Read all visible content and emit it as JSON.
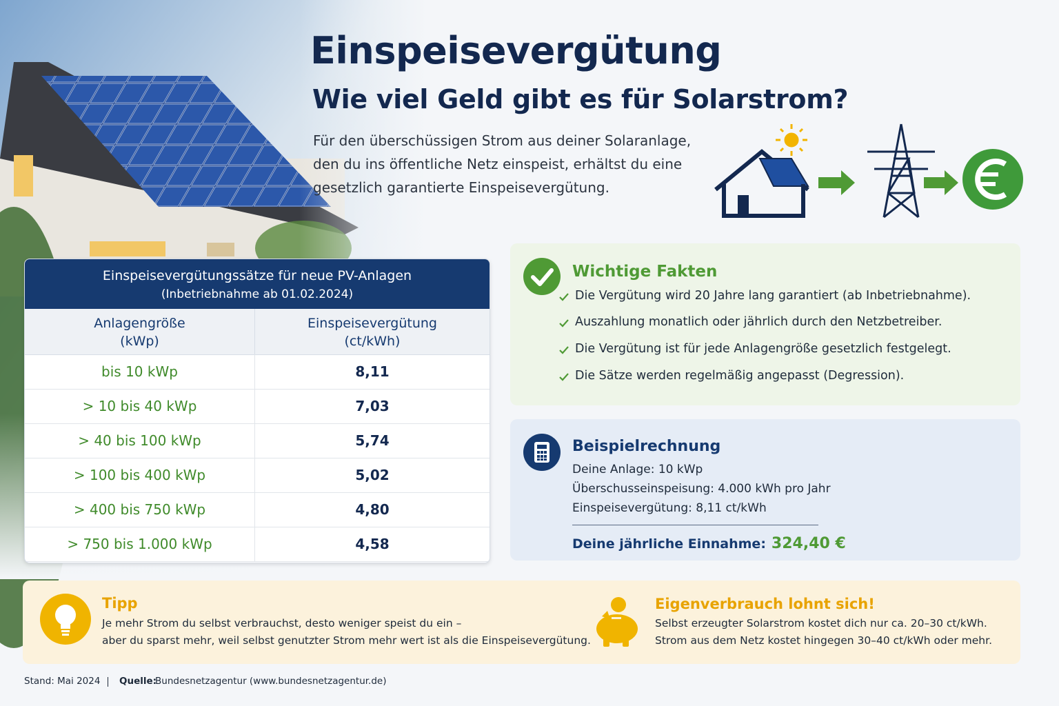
{
  "header": {
    "title": "Einspeisevergütung",
    "subtitle": "Wie viel Geld gibt es für Solarstrom?",
    "intro": [
      "Für den überschüssigen Strom aus deiner Solaranlage,",
      "den du ins öffentliche Netz einspeist, erhältst du eine",
      "gesetzlich garantierte Einspeisevergütung."
    ]
  },
  "table": {
    "title": "Einspeisevergütungssätze für neue PV-Anlagen",
    "subtitle": "(Inbetriebnahme ab 01.02.2024)",
    "columns": [
      [
        "Anlagengröße",
        "(kWp)"
      ],
      [
        "Einspeisevergütung",
        "(ct/kWh)"
      ]
    ],
    "rows": [
      [
        "bis 10 kWp",
        "8,11"
      ],
      [
        "> 10 bis 40 kWp",
        "7,03"
      ],
      [
        "> 40 bis 100 kWp",
        "5,74"
      ],
      [
        "> 100 bis 400 kWp",
        "5,02"
      ],
      [
        "> 400 bis 750 kWp",
        "4,80"
      ],
      [
        "> 750 bis 1.000 kWp",
        "4,58"
      ]
    ]
  },
  "facts": {
    "title": "Wichtige Fakten",
    "items": [
      "Die Vergütung wird 20 Jahre lang garantiert (ab Inbetriebnahme).",
      "Auszahlung monatlich oder jährlich durch den Netzbetreiber.",
      "Die Vergütung ist für jede Anlagengröße gesetzlich festgelegt.",
      "Die Sätze werden regelmäßig angepasst (Degression)."
    ]
  },
  "example": {
    "title": "Beispielrechnung",
    "lines": [
      "Deine Anlage: 10 kWp",
      "Überschusseinspeisung: 4.000 kWh pro Jahr",
      "Einspeisevergütung: 8,11 ct/kWh"
    ],
    "result_label": "Deine jährliche Einnahme:",
    "result_value": "324,40 €"
  },
  "tip": {
    "title": "Tipp",
    "lines": [
      "Je mehr Strom du selbst verbrauchst, desto weniger speist du ein –",
      "aber du sparst mehr, weil selbst genutzter Strom mehr wert ist als die Einspeisevergütung."
    ]
  },
  "own_use": {
    "title": "Eigenverbrauch lohnt sich!",
    "lines": [
      "Selbst erzeugter Solarstrom kostet dich nur ca. 20–30 ct/kWh.",
      "Strom aus dem Netz kostet hingegen 30–40 ct/kWh oder mehr."
    ]
  },
  "footer": {
    "stand": "Stand: Mai 2024",
    "source_label": "Quelle:",
    "source": "Bundesnetzagentur (www.bundesnetzagentur.de)"
  }
}
